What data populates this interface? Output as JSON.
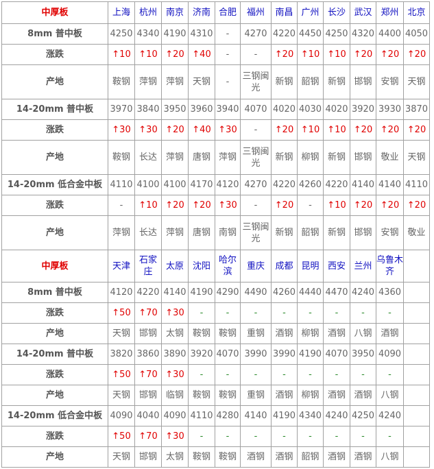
{
  "colors": {
    "header": "#e00000",
    "city": "#1010c0",
    "rise": "#e00000",
    "border": "#a0a0a0"
  },
  "sections": [
    {
      "title": "中厚板",
      "cities": [
        "上海",
        "杭州",
        "南京",
        "济南",
        "合肥",
        "福州",
        "南昌",
        "广州",
        "长沙",
        "武汉",
        "郑州",
        "北京"
      ],
      "rows": [
        {
          "label": "8mm 普中板",
          "type": "price",
          "values": [
            "4250",
            "4340",
            "4190",
            "4310",
            "-",
            "4270",
            "4220",
            "4450",
            "4250",
            "4320",
            "4400",
            "4050"
          ]
        },
        {
          "label": "涨跌",
          "type": "change",
          "values": [
            "↑10",
            "↑10",
            "↑20",
            "↑40",
            "-",
            "-",
            "↑20",
            "↑10",
            "↑10",
            "↑20",
            "↑20",
            "↑20"
          ]
        },
        {
          "label": "产地",
          "type": "origin",
          "values": [
            "鞍钢",
            "萍钢",
            "萍钢",
            "天钢",
            "-",
            "三钢闽光",
            "新钢",
            "韶钢",
            "新钢",
            "邯钢",
            "安钢",
            "天钢"
          ]
        },
        {
          "label": "14-20mm 普中板",
          "type": "price",
          "values": [
            "3970",
            "3840",
            "3950",
            "3960",
            "3940",
            "4070",
            "4020",
            "4030",
            "4020",
            "3920",
            "3930",
            "3870"
          ]
        },
        {
          "label": "涨跌",
          "type": "change",
          "values": [
            "↑30",
            "↑30",
            "↑20",
            "↑40",
            "↑30",
            "-",
            "↑20",
            "↑10",
            "↑10",
            "↑20",
            "↑20",
            "↑20"
          ]
        },
        {
          "label": "产地",
          "type": "origin",
          "values": [
            "鞍钢",
            "长达",
            "萍钢",
            "唐钢",
            "萍钢",
            "三钢闽光",
            "新钢",
            "柳钢",
            "新钢",
            "邯钢",
            "敬业",
            "天钢"
          ]
        },
        {
          "label": "14-20mm 低合金中板",
          "type": "price",
          "values": [
            "4110",
            "4100",
            "4100",
            "4170",
            "4120",
            "4270",
            "4220",
            "4260",
            "4220",
            "4140",
            "4140",
            "4110"
          ]
        },
        {
          "label": "涨跌",
          "type": "change",
          "values": [
            "-",
            "↑10",
            "↑20",
            "↑20",
            "↑30",
            "-",
            "↑20",
            "-",
            "↑10",
            "↑20",
            "↑20",
            "↑20"
          ]
        },
        {
          "label": "产地",
          "type": "origin",
          "values": [
            "萍钢",
            "长达",
            "萍钢",
            "唐钢",
            "南钢",
            "三钢闽光",
            "新钢",
            "韶钢",
            "新钢",
            "邯钢",
            "安钢",
            "敬业"
          ]
        }
      ]
    },
    {
      "title": "中厚板",
      "cities": [
        "天津",
        "石家庄",
        "太原",
        "沈阳",
        "哈尔滨",
        "重庆",
        "成都",
        "昆明",
        "西安",
        "兰州",
        "乌鲁木齐",
        ""
      ],
      "rows": [
        {
          "label": "8mm 普中板",
          "type": "price",
          "values": [
            "4120",
            "4220",
            "4140",
            "4190",
            "4290",
            "4490",
            "4260",
            "4440",
            "4470",
            "4240",
            "4360",
            ""
          ]
        },
        {
          "label": "涨跌",
          "type": "change",
          "values": [
            "↑50",
            "↑70",
            "↑30",
            "-",
            "-",
            "-",
            "-",
            "-",
            "-",
            "-",
            "-",
            ""
          ]
        },
        {
          "label": "产地",
          "type": "origin",
          "values": [
            "天钢",
            "邯钢",
            "太钢",
            "鞍钢",
            "鞍钢",
            "重钢",
            "酒钢",
            "柳钢",
            "酒钢",
            "八钢",
            "酒钢",
            ""
          ]
        },
        {
          "label": "14-20mm 普中板",
          "type": "price",
          "values": [
            "3820",
            "3860",
            "3890",
            "3920",
            "4070",
            "3990",
            "3990",
            "4190",
            "4070",
            "3950",
            "4090",
            ""
          ]
        },
        {
          "label": "涨跌",
          "type": "change",
          "values": [
            "↑50",
            "↑70",
            "↑30",
            "-",
            "-",
            "-",
            "-",
            "-",
            "-",
            "-",
            "-",
            ""
          ]
        },
        {
          "label": "产地",
          "type": "origin",
          "values": [
            "天钢",
            "邯钢",
            "临钢",
            "鞍钢",
            "鞍钢",
            "重钢",
            "酒钢",
            "柳钢",
            "酒钢",
            "酒钢",
            "八钢",
            ""
          ]
        },
        {
          "label": "14-20mm 低合金中板",
          "type": "price",
          "values": [
            "4090",
            "4040",
            "4090",
            "4110",
            "4280",
            "4140",
            "4190",
            "4340",
            "4240",
            "4250",
            "4240",
            ""
          ]
        },
        {
          "label": "涨跌",
          "type": "change",
          "values": [
            "↑50",
            "↑70",
            "↑30",
            "-",
            "-",
            "-",
            "-",
            "-",
            "-",
            "-",
            "-",
            ""
          ]
        },
        {
          "label": "产地",
          "type": "origin",
          "values": [
            "天钢",
            "邯钢",
            "太钢",
            "鞍钢",
            "鞍钢",
            "酒钢",
            "酒钢",
            "韶钢",
            "酒钢",
            "酒钢",
            "八钢",
            ""
          ]
        }
      ]
    }
  ]
}
